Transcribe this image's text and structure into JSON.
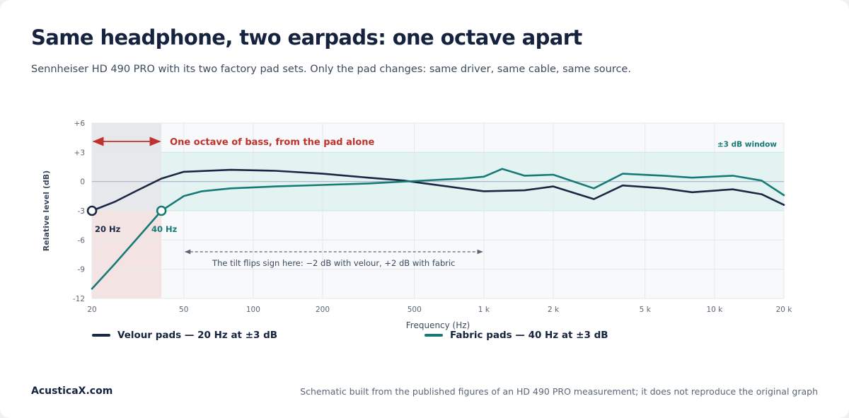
{
  "page": {
    "title": "Same headphone, two earpads: one octave apart",
    "subtitle": "Sennheiser HD 490 PRO with its two factory pad sets. Only the pad changes: same driver, same cable, same source.",
    "brand": "AcusticaX.com",
    "footnote": "Schematic built from the published figures of an HD 490 PRO measurement; it does not reproduce the original graph"
  },
  "colors": {
    "velour": "#1a2745",
    "fabric": "#177a75",
    "band": "#e3f3f1",
    "bass_zone": "#f3e3e3",
    "grey_zone": "#e6e8eb",
    "annotation": "#c0322d"
  },
  "chart_data": {
    "type": "line",
    "xscale": "log",
    "xlim": [
      20,
      20000
    ],
    "ylim": [
      -12,
      6
    ],
    "xlabel": "Frequency (Hz)",
    "ylabel": "Relative level (dB)",
    "x_ticks": [
      {
        "value": 20,
        "label": "20"
      },
      {
        "value": 50,
        "label": "50"
      },
      {
        "value": 100,
        "label": "100"
      },
      {
        "value": 200,
        "label": "200"
      },
      {
        "value": 500,
        "label": "500"
      },
      {
        "value": 1000,
        "label": "1 k"
      },
      {
        "value": 2000,
        "label": "2 k"
      },
      {
        "value": 5000,
        "label": "5 k"
      },
      {
        "value": 10000,
        "label": "10 k"
      },
      {
        "value": 20000,
        "label": "20 k"
      }
    ],
    "y_ticks": [
      {
        "value": 6,
        "label": "+6"
      },
      {
        "value": 3,
        "label": "+3"
      },
      {
        "value": 0,
        "label": "0"
      },
      {
        "value": -3,
        "label": "-3"
      },
      {
        "value": -6,
        "label": "-6"
      },
      {
        "value": -9,
        "label": "-9"
      },
      {
        "value": -12,
        "label": "-12"
      }
    ],
    "grid": true,
    "legend_position": "bottom",
    "band": {
      "low": -3,
      "high": 3,
      "label": "±3 dB window"
    },
    "series": [
      {
        "name": "Velour pads — 20 Hz at ±3 dB",
        "key": "velour",
        "x": [
          20,
          25,
          31.5,
          40,
          50,
          80,
          125,
          200,
          315,
          450,
          600,
          800,
          1000,
          1500,
          2000,
          3000,
          4000,
          6000,
          8000,
          12000,
          16000,
          20000
        ],
        "y": [
          -3,
          -2.1,
          -0.9,
          0.3,
          1.0,
          1.2,
          1.1,
          0.8,
          0.4,
          0.1,
          -0.3,
          -0.7,
          -1.0,
          -0.9,
          -0.5,
          -1.8,
          -0.4,
          -0.7,
          -1.1,
          -0.8,
          -1.3,
          -2.4
        ]
      },
      {
        "name": "Fabric pads — 40 Hz at ±3 dB",
        "key": "fabric",
        "x": [
          20,
          25,
          31.5,
          40,
          50,
          60,
          80,
          125,
          200,
          315,
          500,
          800,
          1000,
          1200,
          1500,
          2000,
          3000,
          4000,
          6000,
          8000,
          12000,
          16000,
          20000
        ],
        "y": [
          -11.0,
          -8.5,
          -5.8,
          -3.0,
          -1.5,
          -1.0,
          -0.7,
          -0.5,
          -0.35,
          -0.2,
          0.05,
          0.3,
          0.5,
          1.3,
          0.6,
          0.7,
          -0.7,
          0.8,
          0.6,
          0.4,
          0.6,
          0.1,
          -1.4
        ]
      }
    ],
    "markers": [
      {
        "series": "velour",
        "x": 20,
        "y": -3,
        "label": "20 Hz"
      },
      {
        "series": "fabric",
        "x": 40,
        "y": -3,
        "label": "40 Hz"
      }
    ],
    "annotations": {
      "octave": {
        "from": 20,
        "to": 40,
        "label": "One octave of bass, from the pad alone"
      },
      "tilt": {
        "from": 50,
        "to": 1000,
        "label": "The tilt flips sign here: −2 dB with velour, +2 dB with fabric"
      }
    }
  }
}
